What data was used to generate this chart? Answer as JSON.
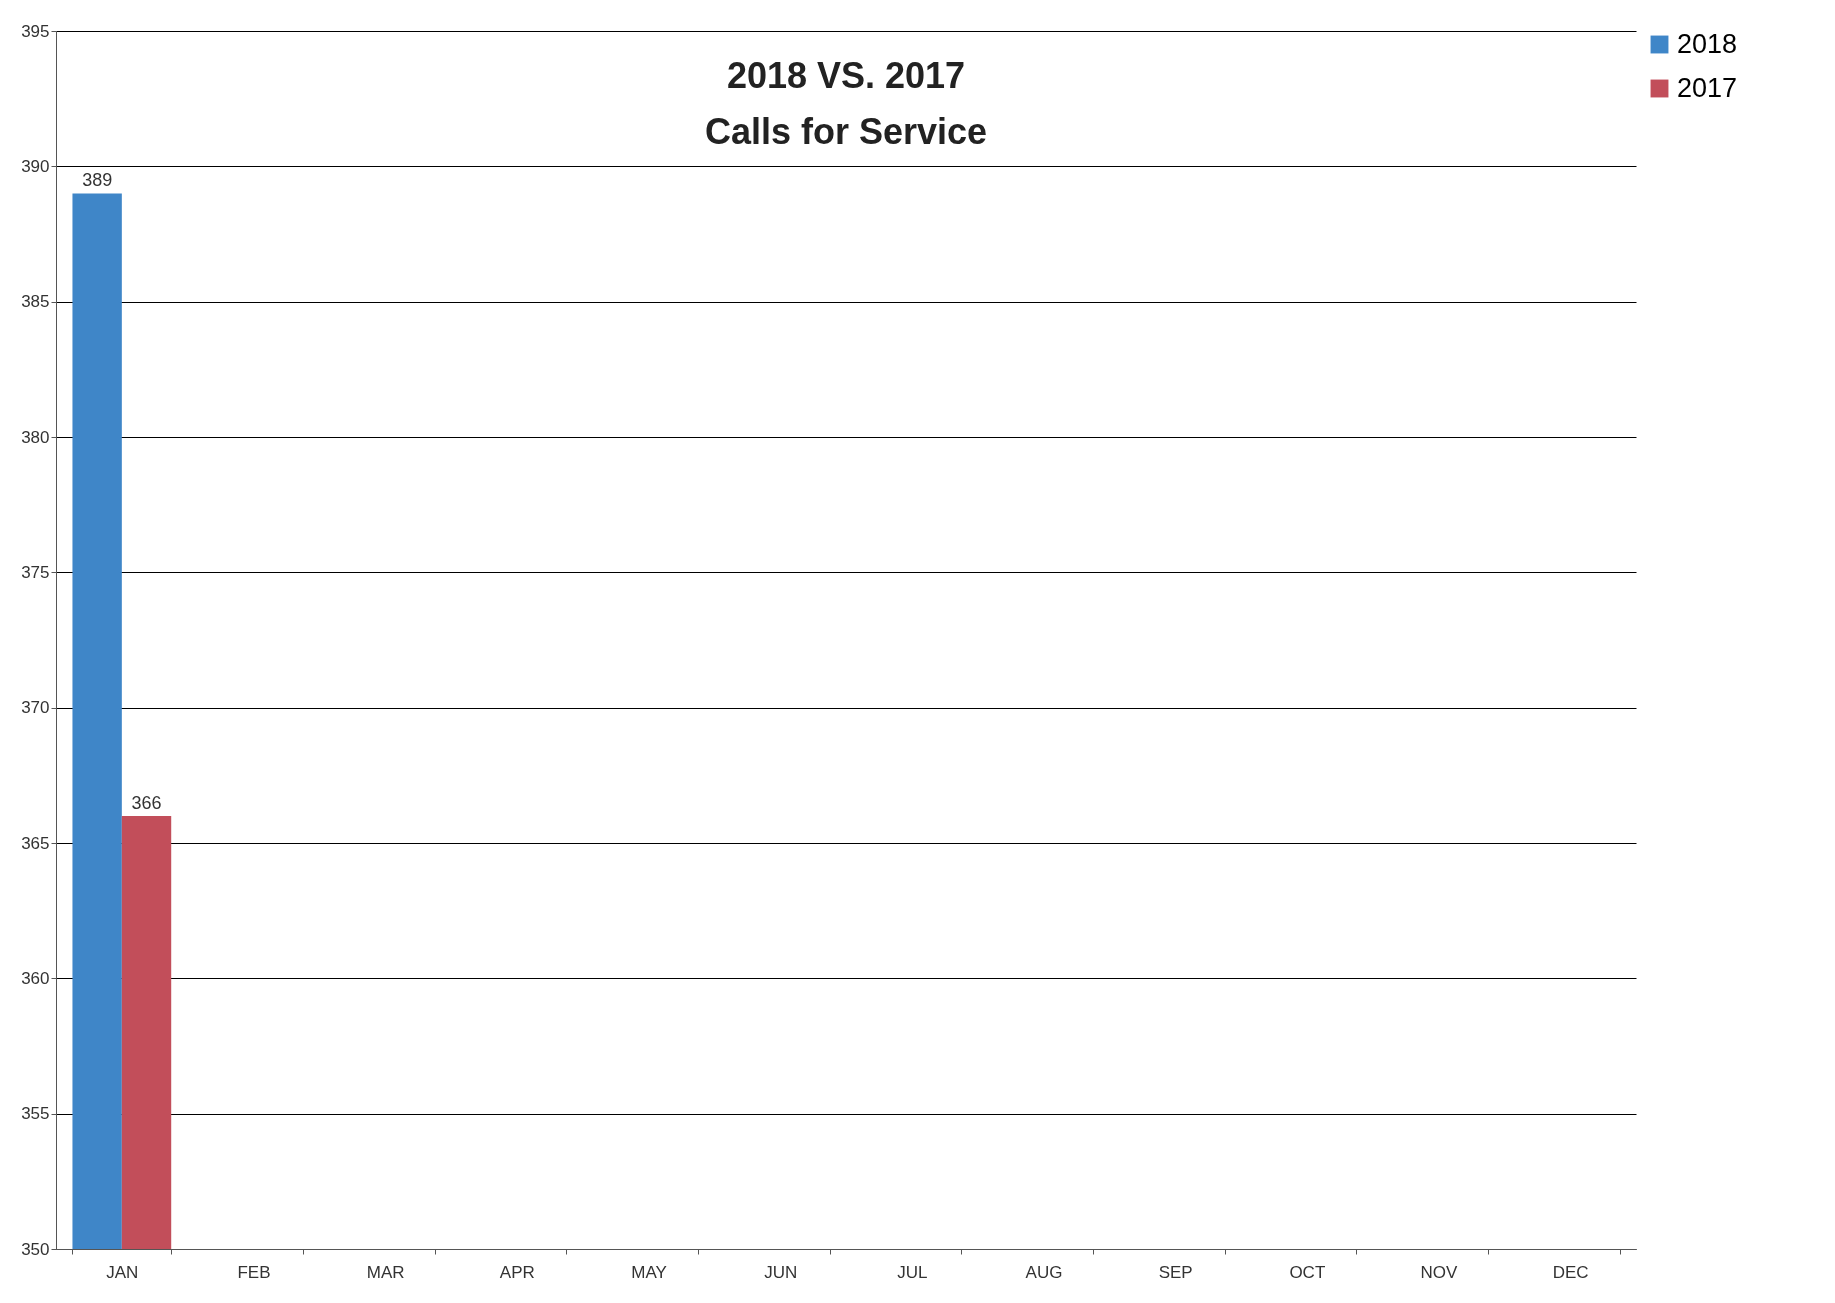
{
  "chart_data": {
    "type": "bar",
    "title": [
      "2018 VS. 2017",
      "Calls for Service"
    ],
    "categories": [
      "JAN",
      "FEB",
      "MAR",
      "APR",
      "MAY",
      "JUN",
      "JUL",
      "AUG",
      "SEP",
      "OCT",
      "NOV",
      "DEC"
    ],
    "series": [
      {
        "name": "2018",
        "color": "#3f86c8",
        "values": [
          389,
          null,
          null,
          null,
          null,
          null,
          null,
          null,
          null,
          null,
          null,
          null
        ]
      },
      {
        "name": "2017",
        "color": "#c24e5a",
        "values": [
          366,
          null,
          null,
          null,
          null,
          null,
          null,
          null,
          null,
          null,
          null,
          null
        ]
      }
    ],
    "ylim": [
      350,
      395
    ],
    "yticks": [
      350,
      355,
      360,
      365,
      370,
      375,
      380,
      385,
      390,
      395
    ],
    "grid": "y",
    "legend": "right",
    "data_labels": true
  }
}
